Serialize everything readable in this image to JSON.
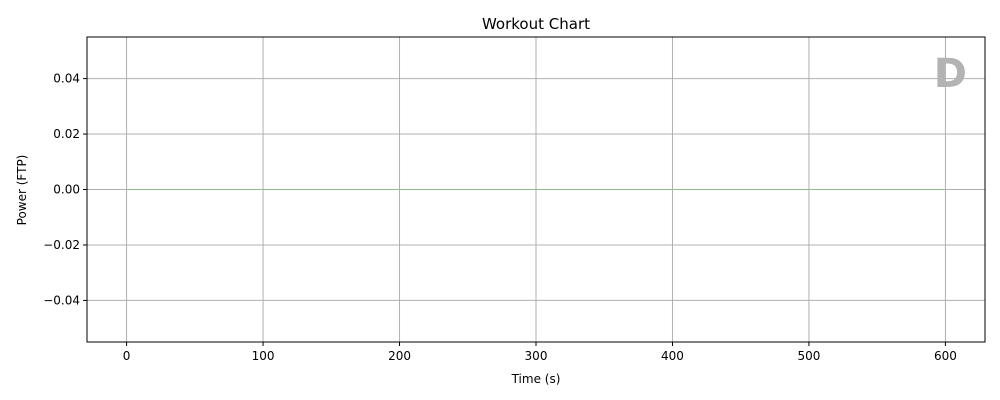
{
  "chart_data": {
    "type": "line",
    "title": "Workout Chart",
    "xlabel": "Time (s)",
    "ylabel": "Power (FTP)",
    "xlim": [
      -29,
      629
    ],
    "ylim": [
      -0.055,
      0.055
    ],
    "x_ticks": [
      0,
      100,
      200,
      300,
      400,
      500,
      600
    ],
    "x_tick_labels": [
      "0",
      "100",
      "200",
      "300",
      "400",
      "500",
      "600"
    ],
    "y_ticks": [
      -0.04,
      -0.02,
      0.0,
      0.02,
      0.04
    ],
    "y_tick_labels": [
      "−0.04",
      "−0.02",
      "0.00",
      "0.02",
      "0.04"
    ],
    "grid": true,
    "series": [
      {
        "x": [
          0,
          600
        ],
        "y": [
          0,
          0
        ],
        "color": "#8fbc8f"
      }
    ],
    "annotation": {
      "text": "D",
      "color": "#b3b3b3",
      "placement": "top-right"
    },
    "colors": {
      "grid": "#b0b0b0",
      "axes": "#000000",
      "background": "#ffffff"
    }
  }
}
